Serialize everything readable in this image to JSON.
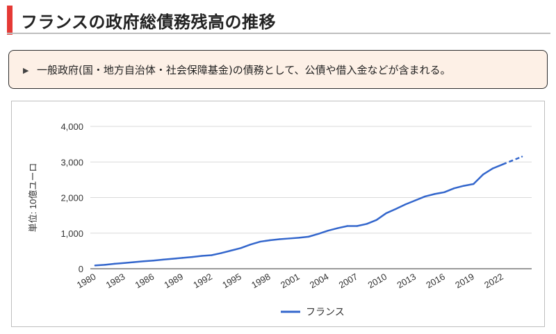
{
  "header": {
    "title": "フランスの政府総債務残高の推移"
  },
  "note": {
    "bullet_icon": "triangle-bullet-icon",
    "text": "一般政府(国・地方自治体・社会保障基金)の債務として、公債や借入金などが含まれる。"
  },
  "colors": {
    "accent": "#e53935",
    "line": "#3366cc",
    "note_bg": "#fdf0e6"
  },
  "chart_data": {
    "type": "line",
    "title": "",
    "ylabel": "単位: 10億ユーロ",
    "xlabel": "",
    "ylim": [
      0,
      4000
    ],
    "yticks": [
      "0",
      "1,000",
      "2,000",
      "3,000",
      "4,000"
    ],
    "xticks": [
      "1980",
      "1983",
      "1986",
      "1989",
      "1992",
      "1995",
      "1998",
      "2001",
      "2004",
      "2007",
      "2010",
      "2013",
      "2016",
      "2019",
      "2022"
    ],
    "grid": true,
    "legend": "bottom",
    "series": [
      {
        "name": "フランス",
        "x": [
          1980,
          1981,
          1982,
          1983,
          1984,
          1985,
          1986,
          1987,
          1988,
          1989,
          1990,
          1991,
          1992,
          1993,
          1994,
          1995,
          1996,
          1997,
          1998,
          1999,
          2000,
          2001,
          2002,
          2003,
          2004,
          2005,
          2006,
          2007,
          2008,
          2009,
          2010,
          2011,
          2012,
          2013,
          2014,
          2015,
          2016,
          2017,
          2018,
          2019,
          2020,
          2021,
          2022,
          2023,
          2024
        ],
        "values": [
          92,
          110,
          140,
          160,
          185,
          210,
          230,
          255,
          280,
          305,
          330,
          360,
          380,
          440,
          510,
          580,
          680,
          760,
          800,
          830,
          850,
          870,
          900,
          980,
          1070,
          1140,
          1200,
          1200,
          1260,
          1370,
          1560,
          1680,
          1810,
          1920,
          2030,
          2100,
          2150,
          2260,
          2330,
          2380,
          2650,
          2820,
          2930,
          3040,
          3150
        ],
        "projected_from": 2022
      }
    ]
  }
}
